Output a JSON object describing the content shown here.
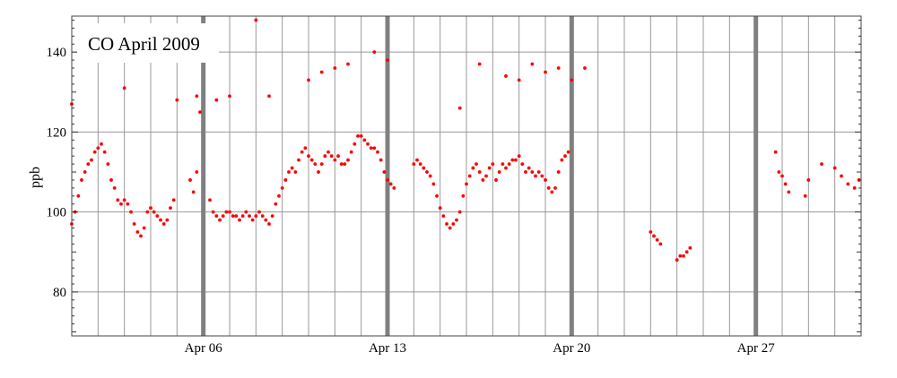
{
  "chart_data": {
    "type": "scatter",
    "title": "CO April 2009",
    "xlabel": "",
    "ylabel": "ppb",
    "ylim": [
      69,
      149
    ],
    "xlim": [
      "2009-04-01T00:00",
      "2009-05-01T00:00"
    ],
    "yticks": [
      80,
      100,
      120,
      140
    ],
    "xticks": [
      {
        "date": "2009-04-06",
        "label": "Apr 06"
      },
      {
        "date": "2009-04-13",
        "label": "Apr 13"
      },
      {
        "date": "2009-04-20",
        "label": "Apr 20"
      },
      {
        "date": "2009-04-27",
        "label": "Apr 27"
      }
    ],
    "vertical_grid": "daily",
    "horizontal_grid": [
      80,
      100,
      120,
      140
    ],
    "shaded_markers": [
      "2009-04-06",
      "2009-04-13",
      "2009-04-20",
      "2009-04-27"
    ],
    "series": [
      {
        "color": "#ff0000",
        "points": [
          [
            "2009-04-01T00:00",
            97
          ],
          [
            "2009-04-01T03:00",
            100
          ],
          [
            "2009-04-01T06:00",
            104
          ],
          [
            "2009-04-01T09:00",
            108
          ],
          [
            "2009-04-01T12:00",
            110
          ],
          [
            "2009-04-01T15:00",
            112
          ],
          [
            "2009-04-01T18:00",
            113
          ],
          [
            "2009-04-01T21:00",
            115
          ],
          [
            "2009-04-02T00:00",
            116
          ],
          [
            "2009-04-02T03:00",
            117
          ],
          [
            "2009-04-02T06:00",
            115
          ],
          [
            "2009-04-02T09:00",
            112
          ],
          [
            "2009-04-02T12:00",
            108
          ],
          [
            "2009-04-02T15:00",
            106
          ],
          [
            "2009-04-02T18:00",
            103
          ],
          [
            "2009-04-02T21:00",
            102
          ],
          [
            "2009-04-03T00:00",
            103
          ],
          [
            "2009-04-03T03:00",
            102
          ],
          [
            "2009-04-03T06:00",
            100
          ],
          [
            "2009-04-03T09:00",
            97
          ],
          [
            "2009-04-03T12:00",
            95
          ],
          [
            "2009-04-03T15:00",
            94
          ],
          [
            "2009-04-03T18:00",
            96
          ],
          [
            "2009-04-03T21:00",
            100
          ],
          [
            "2009-04-04T00:00",
            101
          ],
          [
            "2009-04-04T03:00",
            100
          ],
          [
            "2009-04-04T06:00",
            99
          ],
          [
            "2009-04-04T09:00",
            98
          ],
          [
            "2009-04-04T12:00",
            97
          ],
          [
            "2009-04-04T15:00",
            98
          ],
          [
            "2009-04-04T18:00",
            101
          ],
          [
            "2009-04-04T21:00",
            103
          ],
          [
            "2009-04-05T12:00",
            108
          ],
          [
            "2009-04-05T15:00",
            105
          ],
          [
            "2009-04-05T18:00",
            110
          ],
          [
            "2009-04-05T21:00",
            125
          ],
          [
            "2009-04-06T06:00",
            103
          ],
          [
            "2009-04-06T09:00",
            100
          ],
          [
            "2009-04-06T12:00",
            99
          ],
          [
            "2009-04-06T15:00",
            98
          ],
          [
            "2009-04-06T18:00",
            99
          ],
          [
            "2009-04-06T21:00",
            100
          ],
          [
            "2009-04-07T00:00",
            100
          ],
          [
            "2009-04-07T03:00",
            99
          ],
          [
            "2009-04-07T06:00",
            99
          ],
          [
            "2009-04-07T09:00",
            98
          ],
          [
            "2009-04-07T12:00",
            99
          ],
          [
            "2009-04-07T15:00",
            100
          ],
          [
            "2009-04-07T18:00",
            99
          ],
          [
            "2009-04-07T21:00",
            98
          ],
          [
            "2009-04-08T00:00",
            99
          ],
          [
            "2009-04-08T03:00",
            100
          ],
          [
            "2009-04-08T06:00",
            99
          ],
          [
            "2009-04-08T09:00",
            98
          ],
          [
            "2009-04-08T12:00",
            97
          ],
          [
            "2009-04-08T15:00",
            99
          ],
          [
            "2009-04-08T18:00",
            102
          ],
          [
            "2009-04-08T21:00",
            104
          ],
          [
            "2009-04-09T00:00",
            106
          ],
          [
            "2009-04-09T03:00",
            108
          ],
          [
            "2009-04-09T06:00",
            110
          ],
          [
            "2009-04-09T09:00",
            111
          ],
          [
            "2009-04-09T12:00",
            110
          ],
          [
            "2009-04-09T15:00",
            113
          ],
          [
            "2009-04-09T18:00",
            115
          ],
          [
            "2009-04-09T21:00",
            116
          ],
          [
            "2009-04-10T00:00",
            114
          ],
          [
            "2009-04-10T03:00",
            113
          ],
          [
            "2009-04-10T06:00",
            112
          ],
          [
            "2009-04-10T09:00",
            110
          ],
          [
            "2009-04-10T12:00",
            112
          ],
          [
            "2009-04-10T15:00",
            114
          ],
          [
            "2009-04-10T18:00",
            115
          ],
          [
            "2009-04-10T21:00",
            114
          ],
          [
            "2009-04-11T00:00",
            113
          ],
          [
            "2009-04-11T03:00",
            114
          ],
          [
            "2009-04-11T06:00",
            112
          ],
          [
            "2009-04-11T09:00",
            112
          ],
          [
            "2009-04-11T12:00",
            113
          ],
          [
            "2009-04-11T15:00",
            115
          ],
          [
            "2009-04-11T18:00",
            117
          ],
          [
            "2009-04-11T21:00",
            119
          ],
          [
            "2009-04-12T00:00",
            119
          ],
          [
            "2009-04-12T03:00",
            118
          ],
          [
            "2009-04-12T06:00",
            117
          ],
          [
            "2009-04-12T09:00",
            116
          ],
          [
            "2009-04-12T12:00",
            116
          ],
          [
            "2009-04-12T15:00",
            115
          ],
          [
            "2009-04-12T18:00",
            113
          ],
          [
            "2009-04-12T21:00",
            110
          ],
          [
            "2009-04-13T00:00",
            108
          ],
          [
            "2009-04-13T03:00",
            107
          ],
          [
            "2009-04-13T06:00",
            106
          ],
          [
            "2009-04-14T00:00",
            112
          ],
          [
            "2009-04-14T03:00",
            113
          ],
          [
            "2009-04-14T06:00",
            112
          ],
          [
            "2009-04-14T09:00",
            111
          ],
          [
            "2009-04-14T12:00",
            110
          ],
          [
            "2009-04-14T15:00",
            109
          ],
          [
            "2009-04-14T18:00",
            107
          ],
          [
            "2009-04-14T21:00",
            104
          ],
          [
            "2009-04-15T00:00",
            101
          ],
          [
            "2009-04-15T03:00",
            99
          ],
          [
            "2009-04-15T06:00",
            97
          ],
          [
            "2009-04-15T09:00",
            96
          ],
          [
            "2009-04-15T12:00",
            97
          ],
          [
            "2009-04-15T15:00",
            98
          ],
          [
            "2009-04-15T18:00",
            100
          ],
          [
            "2009-04-15T21:00",
            104
          ],
          [
            "2009-04-16T00:00",
            107
          ],
          [
            "2009-04-16T03:00",
            109
          ],
          [
            "2009-04-16T06:00",
            111
          ],
          [
            "2009-04-16T09:00",
            112
          ],
          [
            "2009-04-16T12:00",
            110
          ],
          [
            "2009-04-16T15:00",
            108
          ],
          [
            "2009-04-16T18:00",
            109
          ],
          [
            "2009-04-16T21:00",
            111
          ],
          [
            "2009-04-17T00:00",
            112
          ],
          [
            "2009-04-17T03:00",
            108
          ],
          [
            "2009-04-17T06:00",
            110
          ],
          [
            "2009-04-17T09:00",
            112
          ],
          [
            "2009-04-17T12:00",
            111
          ],
          [
            "2009-04-17T15:00",
            112
          ],
          [
            "2009-04-17T18:00",
            113
          ],
          [
            "2009-04-17T21:00",
            113
          ],
          [
            "2009-04-18T00:00",
            114
          ],
          [
            "2009-04-18T03:00",
            112
          ],
          [
            "2009-04-18T06:00",
            110
          ],
          [
            "2009-04-18T09:00",
            111
          ],
          [
            "2009-04-18T12:00",
            110
          ],
          [
            "2009-04-18T15:00",
            109
          ],
          [
            "2009-04-18T18:00",
            110
          ],
          [
            "2009-04-18T21:00",
            109
          ],
          [
            "2009-04-19T00:00",
            108
          ],
          [
            "2009-04-19T03:00",
            106
          ],
          [
            "2009-04-19T06:00",
            105
          ],
          [
            "2009-04-19T09:00",
            106
          ],
          [
            "2009-04-19T12:00",
            110
          ],
          [
            "2009-04-19T15:00",
            113
          ],
          [
            "2009-04-19T18:00",
            114
          ],
          [
            "2009-04-19T21:00",
            115
          ],
          [
            "2009-04-23T00:00",
            95
          ],
          [
            "2009-04-23T03:00",
            94
          ],
          [
            "2009-04-23T06:00",
            93
          ],
          [
            "2009-04-23T09:00",
            92
          ],
          [
            "2009-04-24T00:00",
            88
          ],
          [
            "2009-04-24T03:00",
            89
          ],
          [
            "2009-04-24T06:00",
            89
          ],
          [
            "2009-04-24T09:00",
            90
          ],
          [
            "2009-04-24T12:00",
            91
          ],
          [
            "2009-04-27T18:00",
            115
          ],
          [
            "2009-04-27T21:00",
            110
          ],
          [
            "2009-04-28T00:00",
            109
          ],
          [
            "2009-04-28T03:00",
            107
          ],
          [
            "2009-04-28T06:00",
            105
          ],
          [
            "2009-04-28T21:00",
            104
          ],
          [
            "2009-04-29T00:00",
            108
          ],
          [
            "2009-04-29T12:00",
            112
          ],
          [
            "2009-04-30T00:00",
            111
          ],
          [
            "2009-04-30T06:00",
            109
          ],
          [
            "2009-04-30T12:00",
            107
          ],
          [
            "2009-04-30T18:00",
            106
          ],
          [
            "2009-04-30T22:00",
            108
          ],
          [
            "2009-04-01T00:00",
            127
          ],
          [
            "2009-04-03T00:00",
            131
          ],
          [
            "2009-04-05T00:00",
            128
          ],
          [
            "2009-04-05T18:00",
            129
          ],
          [
            "2009-04-06T12:00",
            128
          ],
          [
            "2009-04-07T00:00",
            129
          ],
          [
            "2009-04-08T00:00",
            148
          ],
          [
            "2009-04-08T12:00",
            129
          ],
          [
            "2009-04-10T00:00",
            133
          ],
          [
            "2009-04-10T12:00",
            135
          ],
          [
            "2009-04-11T00:00",
            136
          ],
          [
            "2009-04-11T12:00",
            137
          ],
          [
            "2009-04-12T12:00",
            140
          ],
          [
            "2009-04-13T00:00",
            138
          ],
          [
            "2009-04-15T18:00",
            126
          ],
          [
            "2009-04-16T12:00",
            137
          ],
          [
            "2009-04-17T12:00",
            134
          ],
          [
            "2009-04-18T00:00",
            133
          ],
          [
            "2009-04-18T12:00",
            137
          ],
          [
            "2009-04-19T00:00",
            135
          ],
          [
            "2009-04-19T12:00",
            136
          ],
          [
            "2009-04-20T00:00",
            133
          ],
          [
            "2009-04-20T12:00",
            136
          ]
        ]
      }
    ]
  }
}
